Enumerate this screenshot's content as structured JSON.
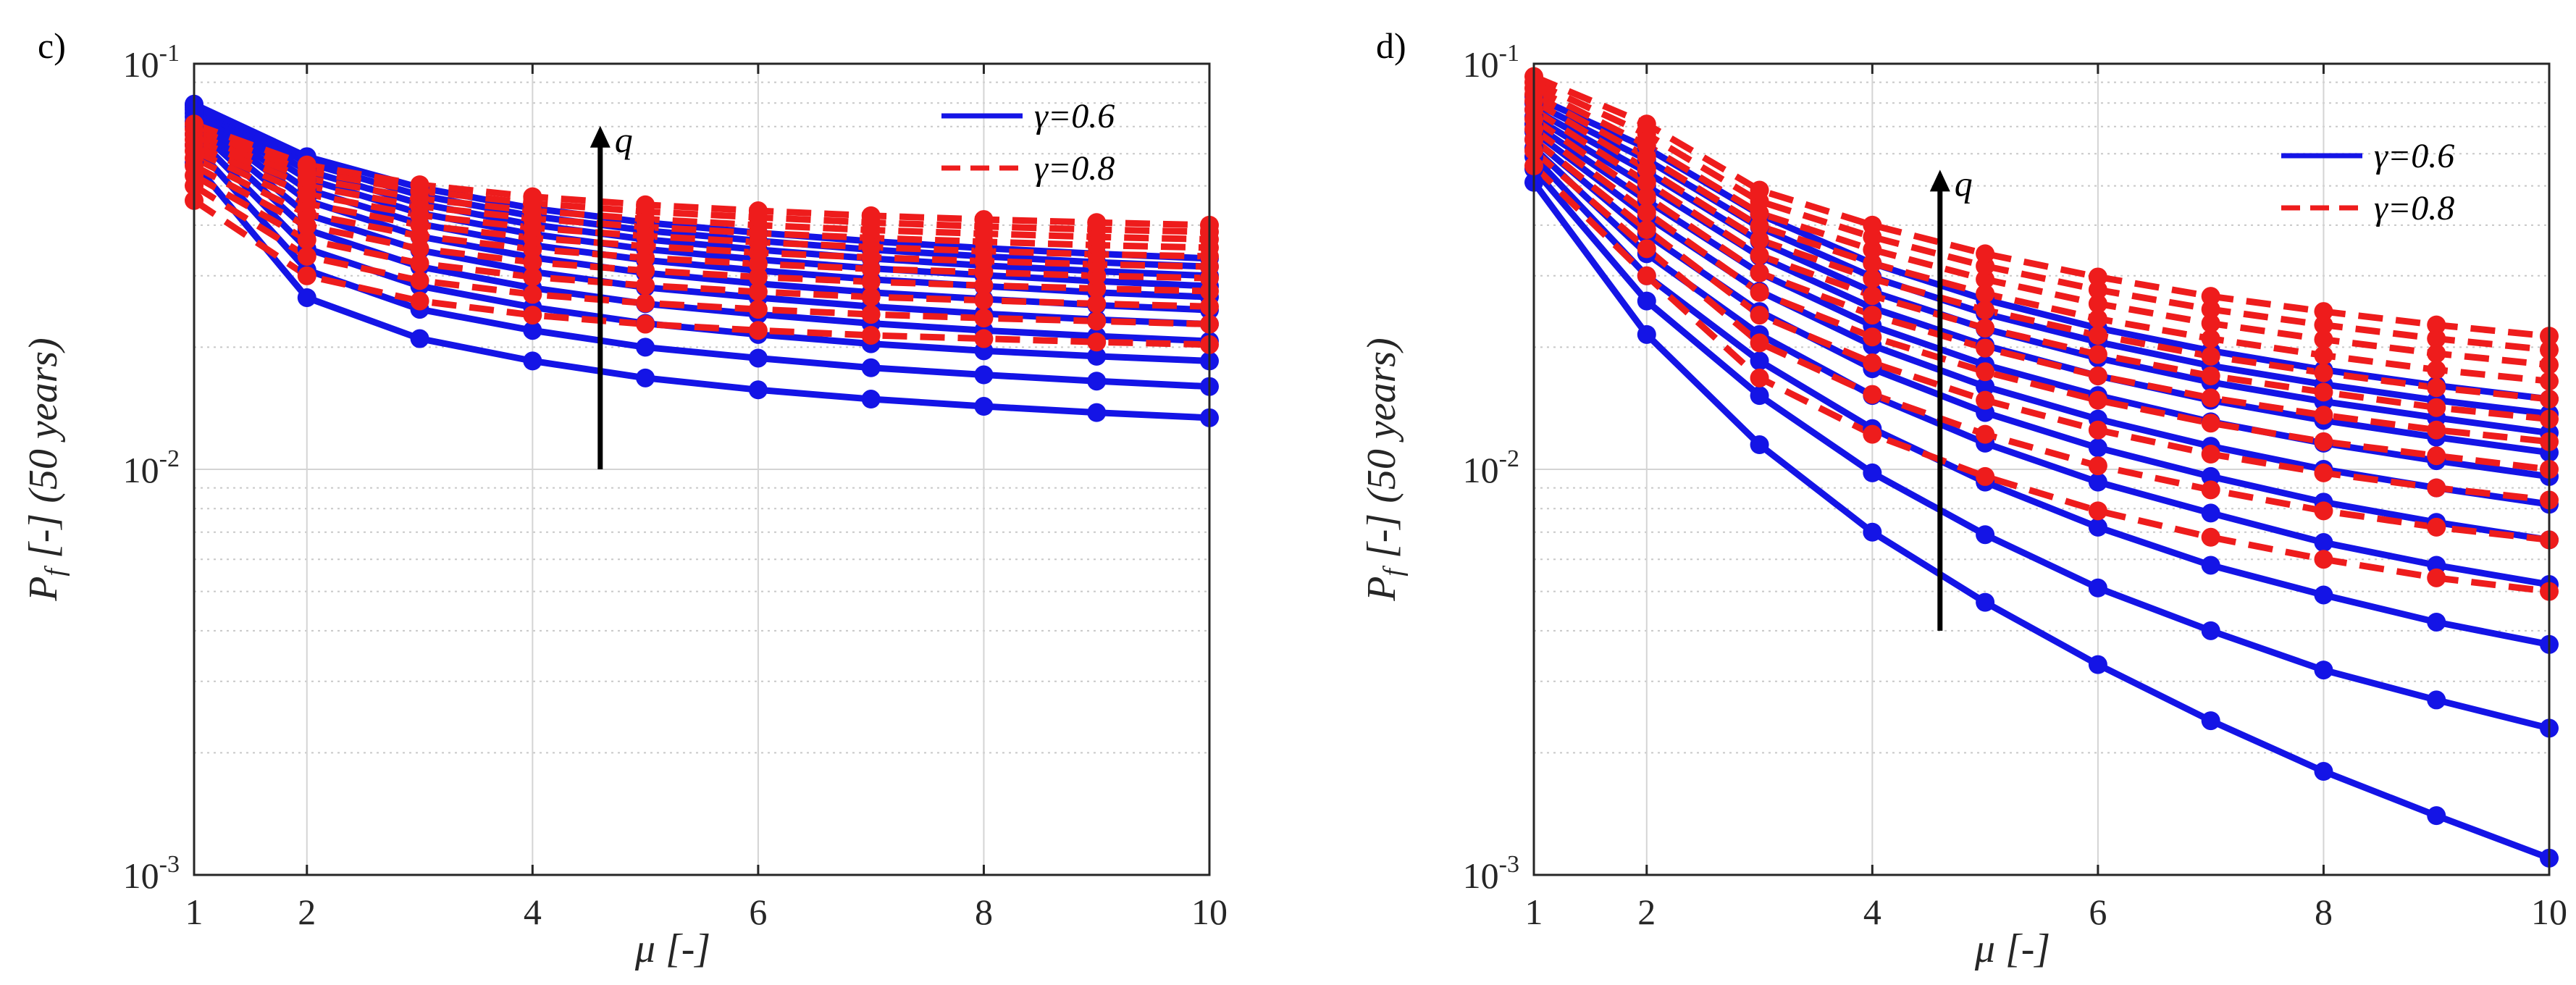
{
  "chart_data": [
    {
      "panel_label": "c)",
      "type": "line",
      "log_y": true,
      "x": [
        1,
        2,
        3,
        4,
        5,
        6,
        7,
        8,
        9,
        10
      ],
      "xlim": [
        1,
        10
      ],
      "ylim": [
        0.001,
        0.1
      ],
      "xticks": [
        "1",
        "2",
        "4",
        "6",
        "8",
        "10"
      ],
      "yticks": [
        {
          "base": "10",
          "exp": "-3"
        },
        {
          "base": "10",
          "exp": "-2"
        },
        {
          "base": "10",
          "exp": "-1"
        }
      ],
      "xlabel": {
        "symbol": "μ",
        "unit": "[-]"
      },
      "ylabel": {
        "symbol": "P",
        "subscript": "f",
        "text": "[-] (50 years)"
      },
      "legend": {
        "position": "top-right",
        "entries": [
          {
            "label": "γ=0.6",
            "style": "solid",
            "color": "#1414e6"
          },
          {
            "label": "γ=0.8",
            "style": "dashed",
            "color": "#ee1c1c"
          }
        ]
      },
      "annotation": {
        "text": "q",
        "arrow": {
          "x": 4.6,
          "from": 0.01,
          "to": 0.068
        }
      },
      "grid": true,
      "series": [
        {
          "name": "γ=0.6",
          "color": "#1414e6",
          "style": "solid",
          "values": [
            0.057,
            0.0265,
            0.021,
            0.0185,
            0.0168,
            0.0157,
            0.0149,
            0.0143,
            0.0138,
            0.0134
          ]
        },
        {
          "name": "γ=0.6",
          "color": "#1414e6",
          "style": "solid",
          "values": [
            0.063,
            0.031,
            0.0248,
            0.022,
            0.02,
            0.0188,
            0.0178,
            0.0171,
            0.0165,
            0.016
          ]
        },
        {
          "name": "γ=0.6",
          "color": "#1414e6",
          "style": "solid",
          "values": [
            0.067,
            0.035,
            0.0283,
            0.0251,
            0.0229,
            0.0215,
            0.0204,
            0.0196,
            0.019,
            0.0185
          ]
        },
        {
          "name": "γ=0.6",
          "color": "#1414e6",
          "style": "solid",
          "values": [
            0.07,
            0.039,
            0.0316,
            0.028,
            0.0256,
            0.0241,
            0.0229,
            0.022,
            0.0213,
            0.0207
          ]
        },
        {
          "name": "γ=0.6",
          "color": "#1414e6",
          "style": "solid",
          "values": [
            0.072,
            0.0425,
            0.0347,
            0.0307,
            0.0281,
            0.0265,
            0.0252,
            0.0242,
            0.0234,
            0.0228
          ]
        },
        {
          "name": "γ=0.6",
          "color": "#1414e6",
          "style": "solid",
          "values": [
            0.074,
            0.046,
            0.0375,
            0.0333,
            0.0305,
            0.0287,
            0.0273,
            0.0263,
            0.0254,
            0.0247
          ]
        },
        {
          "name": "γ=0.6",
          "color": "#1414e6",
          "style": "solid",
          "values": [
            0.0755,
            0.049,
            0.0403,
            0.0357,
            0.0328,
            0.0309,
            0.0294,
            0.0283,
            0.0273,
            0.0266
          ]
        },
        {
          "name": "γ=0.6",
          "color": "#1414e6",
          "style": "solid",
          "values": [
            0.077,
            0.052,
            0.0428,
            0.038,
            0.0349,
            0.0329,
            0.0313,
            0.0301,
            0.0291,
            0.0283
          ]
        },
        {
          "name": "γ=0.6",
          "color": "#1414e6",
          "style": "solid",
          "values": [
            0.078,
            0.0545,
            0.0452,
            0.0401,
            0.0369,
            0.0348,
            0.0331,
            0.0318,
            0.0308,
            0.03
          ]
        },
        {
          "name": "γ=0.6",
          "color": "#1414e6",
          "style": "solid",
          "values": [
            0.079,
            0.057,
            0.0474,
            0.0421,
            0.0388,
            0.0366,
            0.0348,
            0.0335,
            0.0324,
            0.0316
          ]
        },
        {
          "name": "γ=0.6",
          "color": "#1414e6",
          "style": "solid",
          "values": [
            0.0795,
            0.059,
            0.0495,
            0.044,
            0.0406,
            0.0383,
            0.0365,
            0.0351,
            0.034,
            0.0331
          ]
        },
        {
          "name": "γ=0.8",
          "color": "#ee1c1c",
          "style": "dashed",
          "values": [
            0.046,
            0.03,
            0.026,
            0.024,
            0.0228,
            0.022,
            0.0214,
            0.021,
            0.0206,
            0.0203
          ]
        },
        {
          "name": "γ=0.8",
          "color": "#ee1c1c",
          "style": "dashed",
          "values": [
            0.05,
            0.0335,
            0.0292,
            0.027,
            0.0257,
            0.0248,
            0.0241,
            0.0236,
            0.0232,
            0.0228
          ]
        },
        {
          "name": "γ=0.8",
          "color": "#ee1c1c",
          "style": "dashed",
          "values": [
            0.053,
            0.0368,
            0.0322,
            0.0298,
            0.0284,
            0.0274,
            0.0266,
            0.0261,
            0.0256,
            0.0252
          ]
        },
        {
          "name": "γ=0.8",
          "color": "#ee1c1c",
          "style": "dashed",
          "values": [
            0.056,
            0.0398,
            0.035,
            0.0324,
            0.0309,
            0.0298,
            0.029,
            0.0284,
            0.0279,
            0.0275
          ]
        },
        {
          "name": "γ=0.8",
          "color": "#ee1c1c",
          "style": "dashed",
          "values": [
            0.0585,
            0.0426,
            0.0376,
            0.0349,
            0.0332,
            0.0321,
            0.0312,
            0.0306,
            0.03,
            0.0296
          ]
        },
        {
          "name": "γ=0.8",
          "color": "#ee1c1c",
          "style": "dashed",
          "values": [
            0.061,
            0.0452,
            0.04,
            0.0372,
            0.0355,
            0.0342,
            0.0333,
            0.0326,
            0.032,
            0.0316
          ]
        },
        {
          "name": "γ=0.8",
          "color": "#ee1c1c",
          "style": "dashed",
          "values": [
            0.063,
            0.0477,
            0.0423,
            0.0394,
            0.0376,
            0.0363,
            0.0353,
            0.0345,
            0.0339,
            0.0335
          ]
        },
        {
          "name": "γ=0.8",
          "color": "#ee1c1c",
          "style": "dashed",
          "values": [
            0.065,
            0.05,
            0.0445,
            0.0415,
            0.0396,
            0.0382,
            0.0372,
            0.0364,
            0.0357,
            0.0352
          ]
        },
        {
          "name": "γ=0.8",
          "color": "#ee1c1c",
          "style": "dashed",
          "values": [
            0.067,
            0.0522,
            0.0465,
            0.0434,
            0.0414,
            0.04,
            0.0389,
            0.0381,
            0.0374,
            0.0369
          ]
        },
        {
          "name": "γ=0.8",
          "color": "#ee1c1c",
          "style": "dashed",
          "values": [
            0.069,
            0.0543,
            0.0485,
            0.0453,
            0.0432,
            0.0418,
            0.0406,
            0.0397,
            0.039,
            0.0385
          ]
        },
        {
          "name": "γ=0.8",
          "color": "#ee1c1c",
          "style": "dashed",
          "values": [
            0.071,
            0.0563,
            0.0503,
            0.047,
            0.0449,
            0.0434,
            0.0422,
            0.0413,
            0.0406,
            0.04
          ]
        }
      ]
    },
    {
      "panel_label": "d)",
      "type": "line",
      "log_y": true,
      "x": [
        1,
        2,
        3,
        4,
        5,
        6,
        7,
        8,
        9,
        10
      ],
      "xlim": [
        1,
        10
      ],
      "ylim": [
        0.001,
        0.1
      ],
      "xticks": [
        "1",
        "2",
        "4",
        "6",
        "8",
        "10"
      ],
      "yticks": [
        {
          "base": "10",
          "exp": "-3"
        },
        {
          "base": "10",
          "exp": "-2"
        },
        {
          "base": "10",
          "exp": "-1"
        }
      ],
      "xlabel": {
        "symbol": "μ",
        "unit": "[-]"
      },
      "ylabel": {
        "symbol": "P",
        "subscript": "f",
        "text": "[-] (50 years)"
      },
      "legend": {
        "position": "top-right",
        "entries": [
          {
            "label": "γ=0.6",
            "style": "solid",
            "color": "#1414e6"
          },
          {
            "label": "γ=0.8",
            "style": "dashed",
            "color": "#ee1c1c"
          }
        ]
      },
      "annotation": {
        "text": "q",
        "arrow": {
          "x": 4.6,
          "from": 0.004,
          "to": 0.053
        }
      },
      "grid": true,
      "series": [
        {
          "name": "γ=0.6",
          "color": "#1414e6",
          "style": "solid",
          "values": [
            0.051,
            0.0215,
            0.0115,
            0.007,
            0.0047,
            0.0033,
            0.0024,
            0.0018,
            0.0014,
            0.0011
          ]
        },
        {
          "name": "γ=0.6",
          "color": "#1414e6",
          "style": "solid",
          "values": [
            0.055,
            0.026,
            0.0152,
            0.0098,
            0.0069,
            0.0051,
            0.004,
            0.0032,
            0.0027,
            0.0023
          ]
        },
        {
          "name": "γ=0.6",
          "color": "#1414e6",
          "style": "solid",
          "values": [
            0.059,
            0.03,
            0.0185,
            0.0126,
            0.0093,
            0.0072,
            0.0058,
            0.0049,
            0.0042,
            0.0037
          ]
        },
        {
          "name": "γ=0.6",
          "color": "#1414e6",
          "style": "solid",
          "values": [
            0.062,
            0.034,
            0.0215,
            0.0152,
            0.0116,
            0.0093,
            0.0078,
            0.0066,
            0.0058,
            0.0052
          ]
        },
        {
          "name": "γ=0.6",
          "color": "#1414e6",
          "style": "solid",
          "values": [
            0.065,
            0.038,
            0.0245,
            0.0177,
            0.0138,
            0.0113,
            0.0096,
            0.0083,
            0.0074,
            0.0067
          ]
        },
        {
          "name": "γ=0.6",
          "color": "#1414e6",
          "style": "solid",
          "values": [
            0.068,
            0.042,
            0.0275,
            0.0202,
            0.016,
            0.0133,
            0.0114,
            0.01,
            0.009,
            0.0082
          ]
        },
        {
          "name": "γ=0.6",
          "color": "#1414e6",
          "style": "solid",
          "values": [
            0.071,
            0.046,
            0.0305,
            0.0226,
            0.0181,
            0.0152,
            0.0131,
            0.0116,
            0.0105,
            0.0096
          ]
        },
        {
          "name": "γ=0.6",
          "color": "#1414e6",
          "style": "solid",
          "values": [
            0.074,
            0.05,
            0.0335,
            0.025,
            0.0202,
            0.017,
            0.0148,
            0.0132,
            0.012,
            0.011
          ]
        },
        {
          "name": "γ=0.6",
          "color": "#1414e6",
          "style": "solid",
          "values": [
            0.077,
            0.054,
            0.0365,
            0.0274,
            0.0222,
            0.0188,
            0.0164,
            0.0147,
            0.0134,
            0.0123
          ]
        },
        {
          "name": "γ=0.6",
          "color": "#1414e6",
          "style": "solid",
          "values": [
            0.08,
            0.058,
            0.0395,
            0.0298,
            0.0242,
            0.0206,
            0.018,
            0.0162,
            0.0148,
            0.0137
          ]
        },
        {
          "name": "γ=0.6",
          "color": "#1414e6",
          "style": "solid",
          "values": [
            0.083,
            0.062,
            0.0425,
            0.0322,
            0.0262,
            0.0223,
            0.0196,
            0.0176,
            0.0161,
            0.0149
          ]
        },
        {
          "name": "γ=0.8",
          "color": "#ee1c1c",
          "style": "dashed",
          "values": [
            0.056,
            0.03,
            0.0168,
            0.0122,
            0.0096,
            0.0079,
            0.0068,
            0.006,
            0.0054,
            0.005
          ]
        },
        {
          "name": "γ=0.8",
          "color": "#ee1c1c",
          "style": "dashed",
          "values": [
            0.061,
            0.035,
            0.0205,
            0.0153,
            0.0122,
            0.0102,
            0.0089,
            0.0079,
            0.0072,
            0.0067
          ]
        },
        {
          "name": "γ=0.8",
          "color": "#ee1c1c",
          "style": "dashed",
          "values": [
            0.065,
            0.039,
            0.024,
            0.0183,
            0.0148,
            0.0125,
            0.0109,
            0.0098,
            0.009,
            0.0084
          ]
        },
        {
          "name": "γ=0.8",
          "color": "#ee1c1c",
          "style": "dashed",
          "values": [
            0.069,
            0.043,
            0.0273,
            0.0212,
            0.0174,
            0.0148,
            0.013,
            0.0117,
            0.0108,
            0.01
          ]
        },
        {
          "name": "γ=0.8",
          "color": "#ee1c1c",
          "style": "dashed",
          "values": [
            0.073,
            0.047,
            0.0305,
            0.024,
            0.0199,
            0.017,
            0.015,
            0.0136,
            0.0125,
            0.0117
          ]
        },
        {
          "name": "γ=0.8",
          "color": "#ee1c1c",
          "style": "dashed",
          "values": [
            0.077,
            0.051,
            0.0337,
            0.0268,
            0.0223,
            0.0192,
            0.017,
            0.0155,
            0.0142,
            0.0133
          ]
        },
        {
          "name": "γ=0.8",
          "color": "#ee1c1c",
          "style": "dashed",
          "values": [
            0.081,
            0.055,
            0.0368,
            0.0295,
            0.0247,
            0.0214,
            0.019,
            0.0173,
            0.0159,
            0.0149
          ]
        },
        {
          "name": "γ=0.8",
          "color": "#ee1c1c",
          "style": "dashed",
          "values": [
            0.084,
            0.059,
            0.0398,
            0.0322,
            0.0271,
            0.0235,
            0.021,
            0.0191,
            0.0176,
            0.0165
          ]
        },
        {
          "name": "γ=0.8",
          "color": "#ee1c1c",
          "style": "dashed",
          "values": [
            0.087,
            0.063,
            0.0428,
            0.0348,
            0.0294,
            0.0256,
            0.0229,
            0.0209,
            0.0193,
            0.0181
          ]
        },
        {
          "name": "γ=0.8",
          "color": "#ee1c1c",
          "style": "dashed",
          "values": [
            0.09,
            0.067,
            0.0458,
            0.0374,
            0.0317,
            0.0277,
            0.0248,
            0.0227,
            0.021,
            0.0197
          ]
        },
        {
          "name": "γ=0.8",
          "color": "#ee1c1c",
          "style": "dashed",
          "values": [
            0.093,
            0.071,
            0.0488,
            0.04,
            0.034,
            0.0298,
            0.0267,
            0.0245,
            0.0227,
            0.0213
          ]
        }
      ]
    }
  ]
}
